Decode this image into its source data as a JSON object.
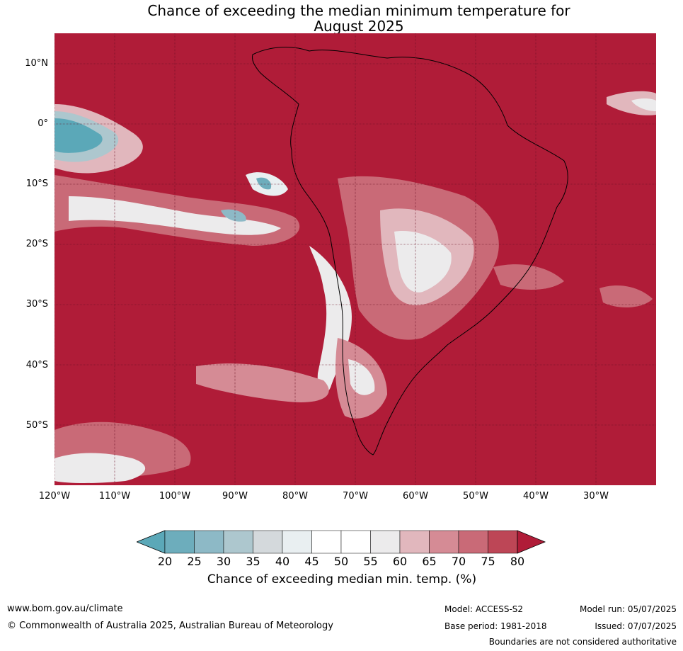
{
  "title_line1": "Chance of exceeding the median minimum temperature for",
  "title_line2": "August 2025",
  "lat_labels": [
    "10°N",
    "0°",
    "10°S",
    "20°S",
    "30°S",
    "40°S",
    "50°S"
  ],
  "lon_labels": [
    "120°W",
    "110°W",
    "100°W",
    "90°W",
    "80°W",
    "70°W",
    "60°W",
    "50°W",
    "40°W",
    "30°W"
  ],
  "colorbar": {
    "ticks": [
      "20",
      "25",
      "30",
      "35",
      "40",
      "45",
      "50",
      "55",
      "60",
      "65",
      "70",
      "75",
      "80"
    ],
    "colors": [
      "#5ba8b8",
      "#6dadbc",
      "#8db9c6",
      "#adc7ce",
      "#d4d9dc",
      "#e9eff1",
      "#ffffff",
      "#ffffff",
      "#ecebec",
      "#e1b7bd",
      "#d58b95",
      "#c96a77",
      "#bd4656",
      "#b01c38"
    ],
    "title": "Chance of exceeding median min. temp. (%)"
  },
  "footer": {
    "url": "www.bom.gov.au/climate",
    "copyright": "© Commonwealth of Australia 2025, Australian Bureau of Meteorology",
    "model": "Model: ACCESS-S2",
    "base_period": "Base period: 1981-2018",
    "model_run": "Model run: 05/07/2025",
    "issued": "Issued: 07/07/2025",
    "disclaimer": "Boundaries are not considered authoritative"
  }
}
